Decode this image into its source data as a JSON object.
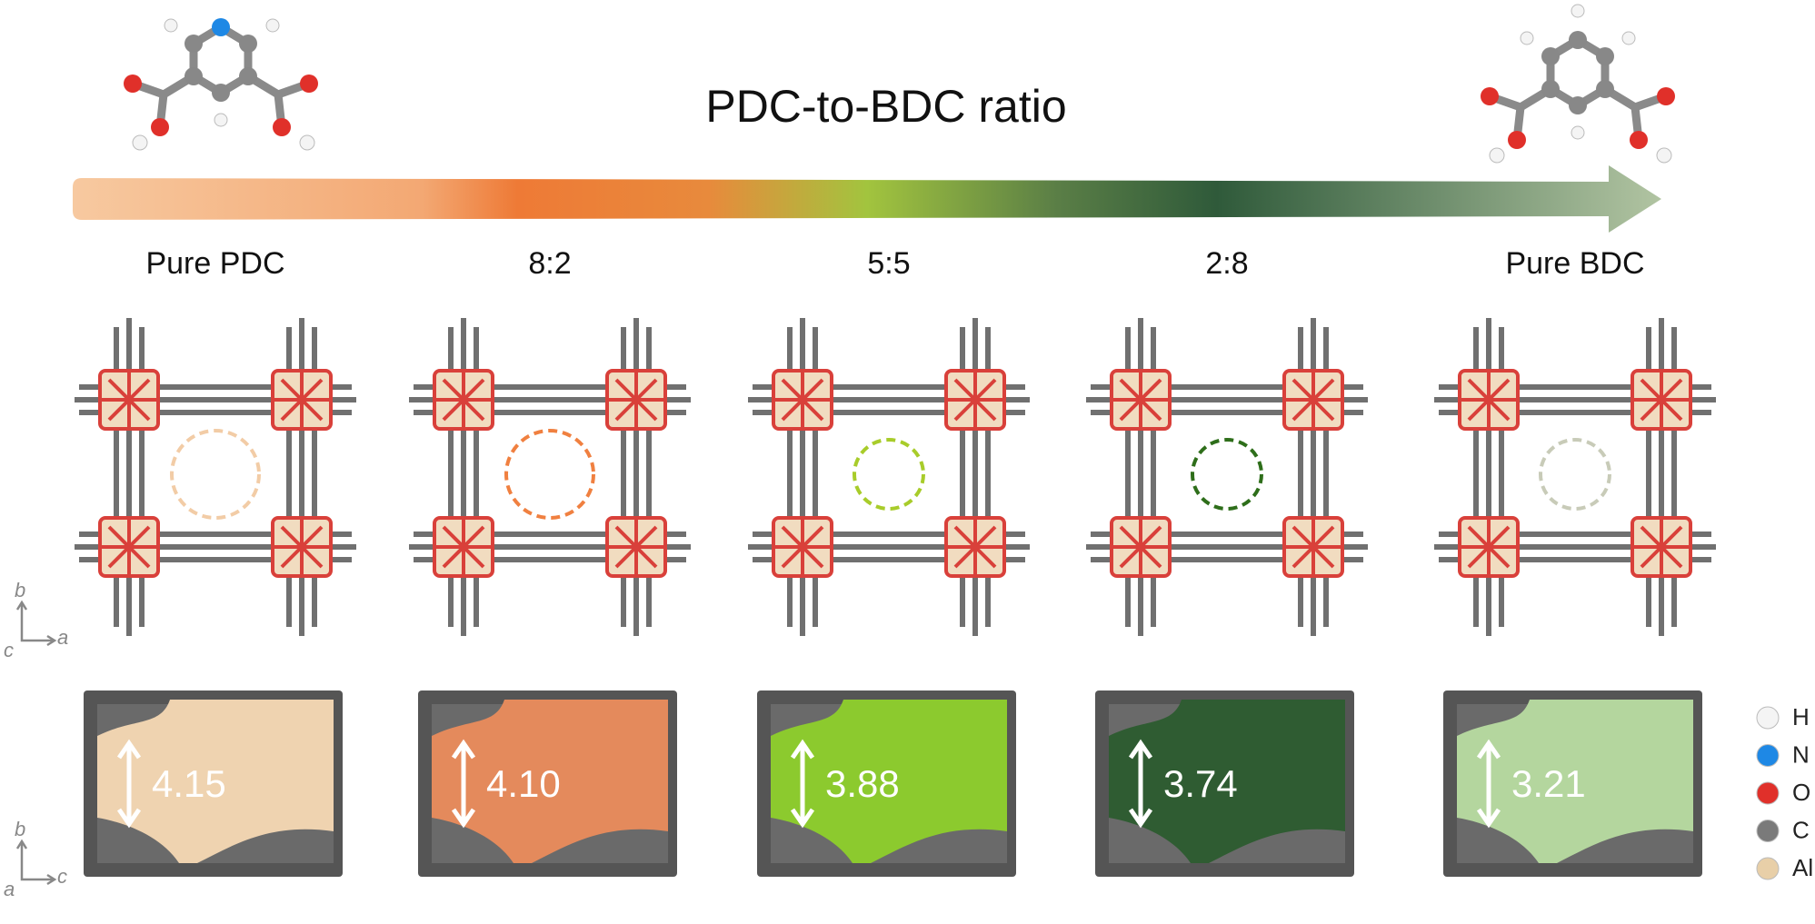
{
  "header": {
    "title": "PDC-to-BDC ratio"
  },
  "columns": [
    {
      "label": "Pure PDC",
      "pore_size": "4.15",
      "ring_color": "#f2cca6",
      "pore_color": "#efd3b0"
    },
    {
      "label": "8:2",
      "pore_size": "4.10",
      "ring_color": "#f08040",
      "pore_color": "#e48a5c"
    },
    {
      "label": "5:5",
      "pore_size": "3.88",
      "ring_color": "#a8cc2a",
      "pore_color": "#8cca2e"
    },
    {
      "label": "2:8",
      "pore_size": "3.74",
      "ring_color": "#2e6e1a",
      "pore_color": "#2f5c32"
    },
    {
      "label": "Pure BDC",
      "pore_size": "3.21",
      "ring_color": "#c8cbb8",
      "pore_color": "#b4d69e"
    }
  ],
  "axes": [
    {
      "vertical": "b",
      "corner": "c",
      "horizontal": "a"
    },
    {
      "vertical": "b",
      "corner": "a",
      "horizontal": "c"
    }
  ],
  "legend": [
    {
      "label": "H",
      "color": "#f4f4f4"
    },
    {
      "label": "N",
      "color": "#1e88e5"
    },
    {
      "label": "O",
      "color": "#e0302a"
    },
    {
      "label": "C",
      "color": "#7a7a7a"
    },
    {
      "label": "Al",
      "color": "#e8cfa8"
    }
  ]
}
